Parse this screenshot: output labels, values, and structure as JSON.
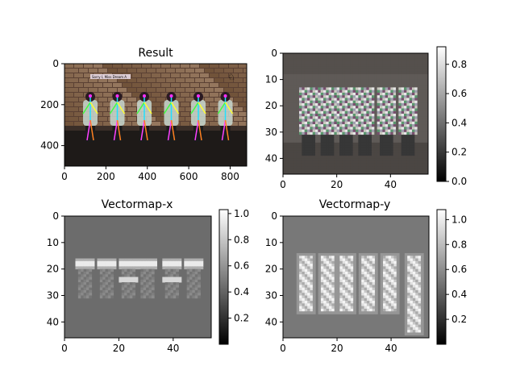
{
  "chart_data": [
    {
      "type": "image",
      "title": "Result",
      "xlim": [
        0,
        880
      ],
      "ylim": [
        500,
        0
      ],
      "xticks": [
        "0",
        "200",
        "400",
        "600",
        "800"
      ],
      "yticks": [
        "0",
        "200",
        "400"
      ],
      "xtick_values": [
        0,
        200,
        400,
        600,
        800
      ],
      "ytick_values": [
        0,
        200,
        400
      ],
      "overlay_caption": "Sorry I, Miss Dream A",
      "persons": 6
    },
    {
      "type": "heatmap",
      "title": "",
      "xlim": [
        0,
        54
      ],
      "ylim": [
        46,
        0
      ],
      "xticks": [
        "0",
        "20",
        "40"
      ],
      "xtick_values": [
        0,
        20,
        40
      ],
      "yticks": [
        "0",
        "10",
        "20",
        "30",
        "40"
      ],
      "ytick_values": [
        0,
        10,
        20,
        30,
        40
      ],
      "colorbar": {
        "range": [
          0.0,
          0.92
        ],
        "ticks": [
          "0.0",
          "0.2",
          "0.4",
          "0.6",
          "0.8"
        ],
        "tick_values": [
          0.0,
          0.2,
          0.4,
          0.6,
          0.8
        ]
      },
      "person_columns": [
        9,
        16,
        23,
        30,
        38,
        46
      ]
    },
    {
      "type": "heatmap",
      "title": "Vectormap-x",
      "xlim": [
        0,
        54
      ],
      "ylim": [
        46,
        0
      ],
      "xticks": [
        "0",
        "20",
        "40"
      ],
      "xtick_values": [
        0,
        20,
        40
      ],
      "yticks": [
        "0",
        "10",
        "20",
        "30",
        "40"
      ],
      "ytick_values": [
        0,
        10,
        20,
        30,
        40
      ],
      "colorbar": {
        "range": [
          0.0,
          1.03
        ],
        "ticks": [
          "0.2",
          "0.4",
          "0.6",
          "0.8",
          "1.0"
        ],
        "tick_values": [
          0.2,
          0.4,
          0.6,
          0.8,
          1.0
        ]
      },
      "person_columns": [
        7,
        15,
        23,
        30,
        39,
        47
      ]
    },
    {
      "type": "heatmap",
      "title": "Vectormap-y",
      "xlim": [
        0,
        54
      ],
      "ylim": [
        46,
        0
      ],
      "xticks": [
        "0",
        "20",
        "40"
      ],
      "xtick_values": [
        0,
        20,
        40
      ],
      "yticks": [
        "0",
        "10",
        "20",
        "30",
        "40"
      ],
      "ytick_values": [
        0,
        10,
        20,
        30,
        40
      ],
      "colorbar": {
        "range": [
          0.0,
          1.08
        ],
        "ticks": [
          "0.2",
          "0.4",
          "0.6",
          "0.8",
          "1.0"
        ],
        "tick_values": [
          0.2,
          0.4,
          0.6,
          0.8,
          1.0
        ]
      },
      "person_columns": [
        8,
        16,
        23,
        31,
        39,
        48
      ]
    }
  ]
}
